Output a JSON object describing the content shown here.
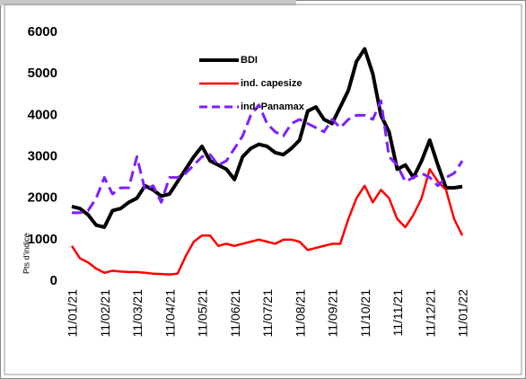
{
  "chart_data": {
    "type": "line",
    "y_label": "Pts d'indice",
    "categories": [
      "11/01/21",
      null,
      null,
      null,
      "11/02/21",
      null,
      null,
      null,
      "11/03/21",
      null,
      null,
      null,
      "11/04/21",
      null,
      null,
      null,
      "11/05/21",
      null,
      null,
      null,
      "11/06/21",
      null,
      null,
      null,
      "11/07/21",
      null,
      null,
      null,
      "11/08/21",
      null,
      null,
      null,
      "11/09/21",
      null,
      null,
      null,
      "11/10/21",
      null,
      null,
      null,
      "11/11/21",
      null,
      null,
      null,
      "11/12/21",
      null,
      null,
      null,
      "11/01/22"
    ],
    "series": [
      {
        "name": "BDI",
        "color": "#000000",
        "dash": false,
        "values": [
          1800,
          1750,
          1600,
          1350,
          1300,
          1700,
          1750,
          1900,
          2000,
          2300,
          2200,
          2050,
          2100,
          2400,
          2700,
          3000,
          3250,
          2900,
          2800,
          2700,
          2450,
          3000,
          3200,
          3300,
          3250,
          3100,
          3050,
          3200,
          3400,
          4100,
          4200,
          3900,
          3800,
          4200,
          4600,
          5300,
          5600,
          5000,
          4000,
          3600,
          2700,
          2800,
          2500,
          2900,
          3400,
          2800,
          2250,
          2250,
          2280
        ]
      },
      {
        "name": "ind. capesize",
        "color": "#ff0000",
        "dash": false,
        "values": [
          850,
          550,
          450,
          300,
          200,
          250,
          230,
          220,
          220,
          200,
          180,
          170,
          160,
          180,
          600,
          950,
          1100,
          1100,
          850,
          900,
          850,
          900,
          950,
          1000,
          950,
          900,
          1000,
          1000,
          950,
          750,
          800,
          850,
          900,
          900,
          1500,
          2000,
          2300,
          1900,
          2200,
          2000,
          1500,
          1300,
          1600,
          2000,
          2700,
          2400,
          2200,
          1500,
          1100
        ]
      },
      {
        "name": "ind. Panamax",
        "color": "#7f1fff",
        "dash": true,
        "values": [
          1650,
          1650,
          1700,
          2000,
          2500,
          2100,
          2250,
          2250,
          3000,
          2200,
          2300,
          1900,
          2500,
          2500,
          2600,
          2800,
          3000,
          3050,
          2800,
          2900,
          3200,
          3500,
          4000,
          4250,
          3800,
          3600,
          3500,
          3800,
          3900,
          3800,
          3700,
          3600,
          3900,
          3700,
          3900,
          4000,
          4000,
          3900,
          4350,
          3000,
          2800,
          2400,
          2500,
          2600,
          2500,
          2300,
          2500,
          2600,
          2900
        ]
      }
    ],
    "ylim": [
      0,
      6000
    ],
    "yticks": [
      0,
      1000,
      2000,
      3000,
      4000,
      5000,
      6000
    ],
    "grid": false,
    "legend": "upper center"
  }
}
